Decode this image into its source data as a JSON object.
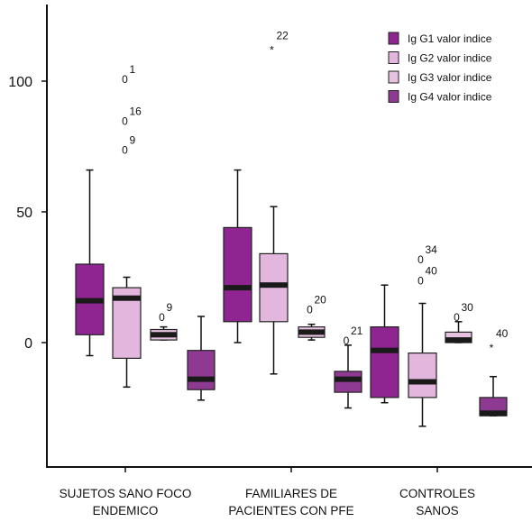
{
  "chart_data": {
    "type": "boxplot",
    "y_ticks": [
      0,
      50,
      100
    ],
    "ylim": [
      -48,
      128
    ],
    "grid": false,
    "legend_position": "top-right",
    "categories": [
      [
        "SUJETOS SANO FOCO",
        "ENDEMICO"
      ],
      [
        "FAMILIARES DE",
        "PACIENTES CON PFE"
      ],
      [
        "CONTROLES",
        "SANOS"
      ]
    ],
    "series": [
      {
        "name": "Ig G1 valor indice",
        "color": "#8e2591"
      },
      {
        "name": "Ig G2 valor indice",
        "color": "#e3b6de"
      },
      {
        "name": "Ig G3 valor indice",
        "color": "#e6c1e0"
      },
      {
        "name": "Ig G4 valor indice",
        "color": "#8e3a92"
      }
    ],
    "boxes": [
      {
        "category": 0,
        "series": 0,
        "whisker_low": -5,
        "q1": 3,
        "median": 16,
        "q3": 30,
        "whisker_high": 66,
        "outliers": []
      },
      {
        "category": 0,
        "series": 1,
        "whisker_low": -17,
        "q1": -6,
        "median": 17,
        "q3": 21,
        "whisker_high": 25,
        "outliers": [
          {
            "value": 101,
            "symbol": "0",
            "label": "1"
          },
          {
            "value": 85,
            "symbol": "0",
            "label": "16"
          },
          {
            "value": 74,
            "symbol": "0",
            "label": "9"
          }
        ]
      },
      {
        "category": 0,
        "series": 2,
        "whisker_low": 1,
        "q1": 1,
        "median": 3,
        "q3": 5,
        "whisker_high": 6,
        "outliers": [
          {
            "value": 10,
            "symbol": "0",
            "label": "9"
          }
        ]
      },
      {
        "category": 0,
        "series": 3,
        "whisker_low": -22,
        "q1": -18,
        "median": -14,
        "q3": -3,
        "whisker_high": 10,
        "outliers": []
      },
      {
        "category": 1,
        "series": 0,
        "whisker_low": 0,
        "q1": 8,
        "median": 21,
        "q3": 44,
        "whisker_high": 66,
        "outliers": []
      },
      {
        "category": 1,
        "series": 1,
        "whisker_low": -12,
        "q1": 8,
        "median": 22,
        "q3": 34,
        "whisker_high": 52,
        "outliers": [
          {
            "value": 114,
            "symbol": "*",
            "label": "22"
          }
        ]
      },
      {
        "category": 1,
        "series": 2,
        "whisker_low": 1,
        "q1": 2,
        "median": 4,
        "q3": 6,
        "whisker_high": 7,
        "outliers": [
          {
            "value": 13,
            "symbol": "0",
            "label": "20"
          }
        ]
      },
      {
        "category": 1,
        "series": 3,
        "whisker_low": -25,
        "q1": -19,
        "median": -14,
        "q3": -11,
        "whisker_high": -1,
        "outliers": [
          {
            "value": 1,
            "symbol": "0",
            "label": "21"
          }
        ]
      },
      {
        "category": 2,
        "series": 0,
        "whisker_low": -23,
        "q1": -21,
        "median": -3,
        "q3": 6,
        "whisker_high": 22,
        "outliers": []
      },
      {
        "category": 2,
        "series": 1,
        "whisker_low": -32,
        "q1": -21,
        "median": -15,
        "q3": -4,
        "whisker_high": 15,
        "outliers": [
          {
            "value": 32,
            "symbol": "0",
            "label": "34"
          },
          {
            "value": 24,
            "symbol": "0",
            "label": "40"
          }
        ]
      },
      {
        "category": 2,
        "series": 2,
        "whisker_low": 0,
        "q1": 0,
        "median": 1,
        "q3": 4,
        "whisker_high": 8,
        "outliers": [
          {
            "value": 10,
            "symbol": "0",
            "label": "30"
          }
        ]
      },
      {
        "category": 2,
        "series": 3,
        "whisker_low": -28,
        "q1": -28,
        "median": -27,
        "q3": -21,
        "whisker_high": -13,
        "outliers": [
          {
            "value": 0,
            "symbol": "*",
            "label": "40"
          }
        ]
      }
    ]
  }
}
